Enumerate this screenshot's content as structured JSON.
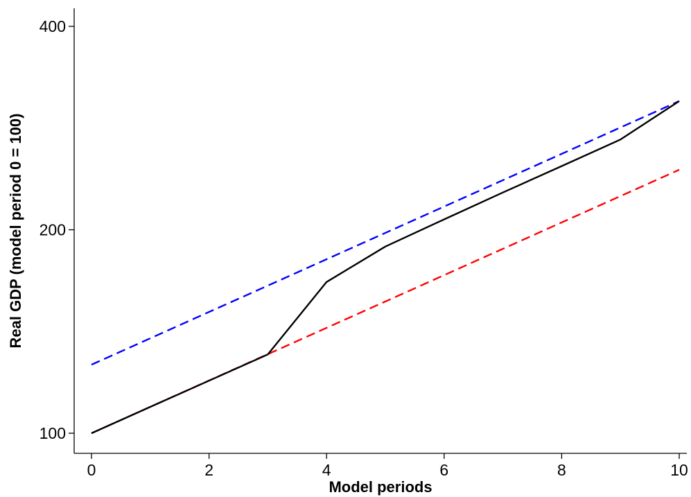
{
  "chart_data": {
    "type": "line",
    "xlabel": "Model periods",
    "ylabel": "Real GDP (model period 0 = 100)",
    "xlim": [
      -0.3,
      10.05
    ],
    "ylim": [
      95,
      420
    ],
    "y_scale": "log",
    "x_ticks": [
      0,
      2,
      4,
      6,
      8,
      10
    ],
    "y_ticks": [
      100,
      200,
      400
    ],
    "grid": false,
    "legend": "none",
    "series": [
      {
        "color": "#0000ff",
        "dash": "dashed",
        "x": [
          0,
          10
        ],
        "y": [
          126.3,
          310
        ]
      },
      {
        "color": "#ff0000",
        "dash": "dashed",
        "x": [
          0,
          10
        ],
        "y": [
          100,
          245.4
        ]
      },
      {
        "color": "#000000",
        "dash": "solid",
        "x": [
          0,
          1,
          2,
          3,
          4,
          5,
          6,
          7,
          8,
          9,
          10
        ],
        "y": [
          100,
          109.4,
          119.6,
          130.8,
          167.4,
          188.9,
          207.2,
          227.1,
          248.5,
          272.0,
          310
        ]
      }
    ]
  }
}
